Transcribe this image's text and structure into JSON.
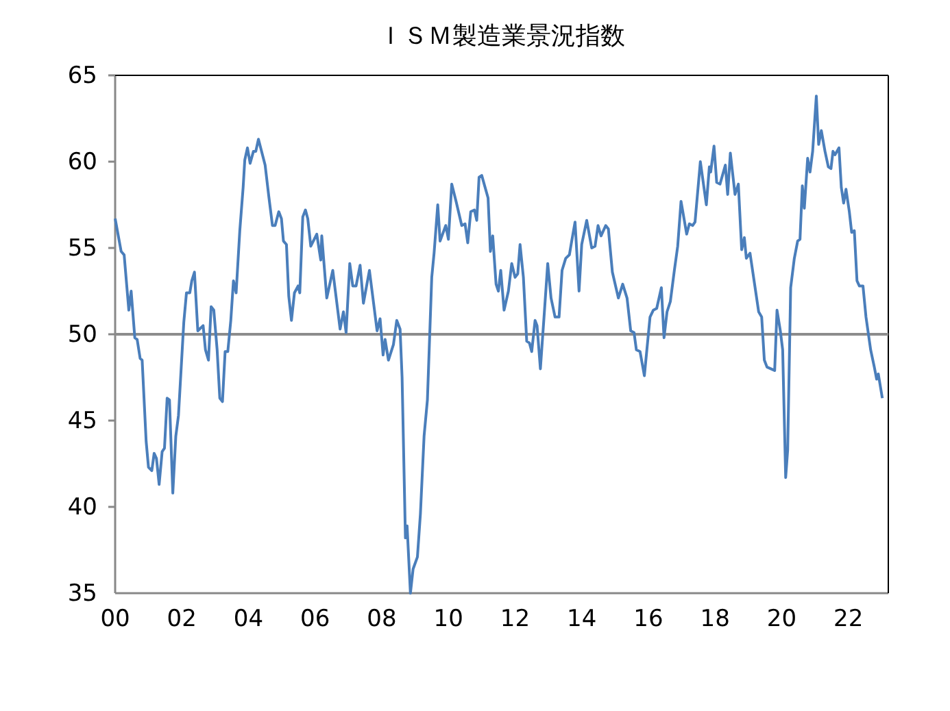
{
  "chart_data": {
    "type": "line",
    "title": "ＩＳＭ製造業景況指数",
    "xlim": [
      2000,
      2023.2
    ],
    "xticks": [
      {
        "value": 2000,
        "label": "00"
      },
      {
        "value": 2002,
        "label": "02"
      },
      {
        "value": 2004,
        "label": "04"
      },
      {
        "value": 2006,
        "label": "06"
      },
      {
        "value": 2008,
        "label": "08"
      },
      {
        "value": 2010,
        "label": "10"
      },
      {
        "value": 2012,
        "label": "12"
      },
      {
        "value": 2014,
        "label": "14"
      },
      {
        "value": 2016,
        "label": "16"
      },
      {
        "value": 2018,
        "label": "18"
      },
      {
        "value": 2020,
        "label": "20"
      },
      {
        "value": 2022,
        "label": "22"
      }
    ],
    "ylim": [
      35,
      65
    ],
    "yticks": [
      35,
      40,
      45,
      50,
      55,
      60,
      65
    ],
    "grid": false,
    "marker": "none",
    "line_style": "solid",
    "ref_lines": [
      {
        "axis": "y",
        "value": 50,
        "color": "#8c8c8c"
      }
    ],
    "series": [
      {
        "color": "#4a7ebb",
        "x": [
          2000.0,
          2000.18,
          2000.27,
          2000.41,
          2000.48,
          2000.59,
          2000.66,
          2000.75,
          2000.81,
          2000.93,
          2001.0,
          2001.1,
          2001.17,
          2001.24,
          2001.32,
          2001.41,
          2001.48,
          2001.56,
          2001.63,
          2001.73,
          2001.82,
          2001.9,
          2002.06,
          2002.14,
          2002.24,
          2002.3,
          2002.38,
          2002.48,
          2002.64,
          2002.71,
          2002.8,
          2002.88,
          2002.96,
          2003.06,
          2003.14,
          2003.22,
          2003.3,
          2003.38,
          2003.47,
          2003.55,
          2003.63,
          2003.74,
          2003.84,
          2003.89,
          2003.97,
          2004.05,
          2004.15,
          2004.22,
          2004.3,
          2004.5,
          2004.61,
          2004.72,
          2004.8,
          2004.91,
          2004.99,
          2005.05,
          2005.14,
          2005.21,
          2005.29,
          2005.38,
          2005.49,
          2005.54,
          2005.63,
          2005.71,
          2005.78,
          2005.87,
          2006.05,
          2006.17,
          2006.2,
          2006.35,
          2006.53,
          2006.75,
          2006.85,
          2006.93,
          2007.04,
          2007.13,
          2007.23,
          2007.35,
          2007.45,
          2007.63,
          2007.86,
          2007.95,
          2008.04,
          2008.1,
          2008.2,
          2008.35,
          2008.45,
          2008.55,
          2008.61,
          2008.71,
          2008.76,
          2008.86,
          2008.94,
          2009.07,
          2009.16,
          2009.27,
          2009.37,
          2009.5,
          2009.57,
          2009.68,
          2009.75,
          2009.92,
          2010.0,
          2010.1,
          2010.23,
          2010.4,
          2010.5,
          2010.58,
          2010.67,
          2010.78,
          2010.85,
          2010.92,
          2011.0,
          2011.19,
          2011.26,
          2011.33,
          2011.43,
          2011.5,
          2011.57,
          2011.67,
          2011.8,
          2011.9,
          2012.0,
          2012.08,
          2012.15,
          2012.25,
          2012.35,
          2012.43,
          2012.5,
          2012.6,
          2012.66,
          2012.76,
          2012.88,
          2012.98,
          2013.08,
          2013.2,
          2013.32,
          2013.41,
          2013.52,
          2013.63,
          2013.7,
          2013.8,
          2013.92,
          2014.0,
          2014.15,
          2014.3,
          2014.4,
          2014.49,
          2014.58,
          2014.72,
          2014.8,
          2014.92,
          2015.1,
          2015.23,
          2015.36,
          2015.47,
          2015.57,
          2015.64,
          2015.75,
          2015.88,
          2016.05,
          2016.15,
          2016.25,
          2016.39,
          2016.47,
          2016.56,
          2016.66,
          2016.78,
          2016.88,
          2016.98,
          2017.15,
          2017.23,
          2017.33,
          2017.4,
          2017.56,
          2017.74,
          2017.83,
          2017.87,
          2017.97,
          2018.05,
          2018.15,
          2018.31,
          2018.38,
          2018.46,
          2018.6,
          2018.7,
          2018.8,
          2018.88,
          2018.94,
          2019.05,
          2019.18,
          2019.31,
          2019.4,
          2019.48,
          2019.56,
          2019.79,
          2019.86,
          2019.96,
          2020.03,
          2020.12,
          2020.18,
          2020.27,
          2020.38,
          2020.48,
          2020.55,
          2020.62,
          2020.68,
          2020.78,
          2020.85,
          2020.93,
          2021.04,
          2021.11,
          2021.19,
          2021.3,
          2021.4,
          2021.48,
          2021.54,
          2021.6,
          2021.72,
          2021.79,
          2021.86,
          2021.93,
          2022.03,
          2022.1,
          2022.18,
          2022.26,
          2022.33,
          2022.44,
          2022.53,
          2022.67,
          2022.78,
          2022.85,
          2022.9,
          2023.02
        ],
        "values": [
          56.7,
          54.8,
          54.6,
          51.4,
          52.5,
          49.8,
          49.7,
          48.6,
          48.5,
          43.8,
          42.3,
          42.1,
          43.1,
          42.8,
          41.3,
          43.2,
          43.4,
          46.3,
          46.2,
          40.8,
          44.1,
          45.3,
          50.7,
          52.4,
          52.4,
          53.1,
          53.6,
          50.2,
          50.5,
          49.1,
          48.5,
          51.6,
          51.4,
          49.1,
          46.3,
          46.1,
          49.0,
          49.0,
          50.8,
          53.1,
          52.4,
          56.0,
          58.5,
          60.1,
          60.8,
          59.9,
          60.6,
          60.6,
          61.3,
          59.8,
          58.0,
          56.3,
          56.3,
          57.1,
          56.7,
          55.4,
          55.2,
          52.2,
          50.8,
          52.4,
          52.8,
          52.4,
          56.8,
          57.2,
          56.7,
          55.1,
          55.8,
          54.3,
          55.7,
          52.1,
          53.7,
          50.3,
          51.3,
          50.1,
          54.1,
          52.8,
          52.8,
          54.0,
          51.8,
          53.7,
          50.2,
          50.9,
          48.8,
          49.7,
          48.5,
          49.4,
          50.8,
          50.3,
          47.5,
          38.2,
          38.9,
          35.0,
          36.4,
          37.1,
          39.6,
          44.1,
          46.2,
          53.3,
          54.7,
          57.5,
          55.4,
          56.3,
          55.5,
          58.7,
          57.7,
          56.3,
          56.4,
          55.3,
          57.1,
          57.2,
          56.6,
          59.1,
          59.2,
          57.9,
          54.8,
          55.7,
          52.9,
          52.5,
          53.7,
          51.4,
          52.5,
          54.1,
          53.3,
          53.5,
          55.2,
          53.3,
          49.6,
          49.5,
          49.0,
          50.8,
          50.5,
          48.0,
          51.3,
          54.1,
          52.1,
          51.0,
          51.0,
          53.7,
          54.4,
          54.6,
          55.4,
          56.5,
          52.5,
          55.2,
          56.6,
          55.0,
          55.1,
          56.3,
          55.7,
          56.3,
          56.1,
          53.6,
          52.1,
          52.9,
          52.1,
          50.2,
          50.1,
          49.1,
          49.0,
          47.6,
          51.0,
          51.4,
          51.5,
          52.7,
          49.8,
          51.3,
          51.9,
          53.7,
          55.1,
          57.7,
          55.8,
          56.4,
          56.3,
          56.5,
          60.0,
          57.5,
          59.7,
          59.4,
          60.9,
          58.8,
          58.7,
          59.8,
          58.1,
          60.5,
          58.1,
          58.7,
          54.9,
          55.6,
          54.4,
          54.7,
          53.0,
          51.3,
          51.0,
          48.5,
          48.1,
          47.9,
          51.4,
          50.2,
          49.1,
          41.7,
          43.3,
          52.7,
          54.4,
          55.4,
          55.5,
          58.6,
          57.3,
          60.2,
          59.4,
          60.6,
          63.8,
          61.0,
          61.8,
          60.6,
          59.7,
          59.6,
          60.6,
          60.4,
          60.8,
          58.5,
          57.6,
          58.4,
          57.1,
          55.9,
          56.0,
          53.1,
          52.8,
          52.8,
          51.0,
          49.1,
          48.1,
          47.4,
          47.7,
          46.3
        ]
      }
    ]
  }
}
